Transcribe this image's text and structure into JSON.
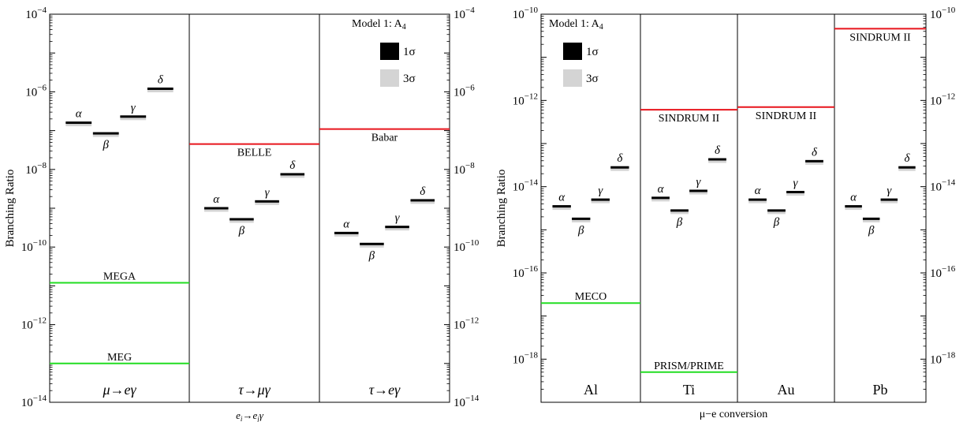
{
  "chart_data": [
    {
      "type": "scatter",
      "scale": "log",
      "ylabel": "Branching Ratio",
      "xlabel": "e_i→e_jγ",
      "ylim": [
        1e-14,
        0.0001
      ],
      "y_ticks": [
        {
          "v": 0.0001,
          "base": "10",
          "exp": "−4"
        },
        {
          "v": 1e-06,
          "base": "10",
          "exp": "−6"
        },
        {
          "v": 1e-08,
          "base": "10",
          "exp": "−8"
        },
        {
          "v": 1e-10,
          "base": "10",
          "exp": "−10"
        },
        {
          "v": 1e-12,
          "base": "10",
          "exp": "−12"
        },
        {
          "v": 1e-14,
          "base": "10",
          "exp": "−14"
        }
      ],
      "legend": {
        "title": "Model 1: A",
        "title_sub": "4",
        "items": [
          {
            "label": "1σ",
            "color": "#000000"
          },
          {
            "label": "3σ",
            "color": "#d4d4d4"
          }
        ]
      },
      "bounds_color_current": "#e8141c",
      "bounds_color_future": "#22dd22",
      "panels": [
        {
          "name": "μ→eγ",
          "points": [
            {
              "label": "α",
              "value": 1.6e-07
            },
            {
              "label": "β",
              "value": 8.5e-08
            },
            {
              "label": "γ",
              "value": 2.3e-07
            },
            {
              "label": "δ",
              "value": 1.2e-06
            }
          ],
          "bounds": [
            {
              "label": "MEGA",
              "value": 1.2e-11,
              "kind": "future"
            },
            {
              "label": "MEG",
              "value": 1e-13,
              "kind": "future"
            }
          ]
        },
        {
          "name": "τ→μγ",
          "points": [
            {
              "label": "α",
              "value": 1e-09
            },
            {
              "label": "β",
              "value": 5.2e-10
            },
            {
              "label": "γ",
              "value": 1.5e-09
            },
            {
              "label": "δ",
              "value": 7.5e-09
            }
          ],
          "bounds": [
            {
              "label": "BELLE",
              "value": 4.5e-08,
              "kind": "current"
            }
          ]
        },
        {
          "name": "τ→eγ",
          "points": [
            {
              "label": "α",
              "value": 2.3e-10
            },
            {
              "label": "β",
              "value": 1.2e-10
            },
            {
              "label": "γ",
              "value": 3.3e-10
            },
            {
              "label": "δ",
              "value": 1.6e-09
            }
          ],
          "bounds": [
            {
              "label": "Babar",
              "value": 1.1e-07,
              "kind": "current"
            }
          ]
        }
      ]
    },
    {
      "type": "scatter",
      "scale": "log",
      "ylabel": "Branching Ratio",
      "xlabel": "μ−e conversion",
      "ylim": [
        1e-19,
        1e-10
      ],
      "y_ticks": [
        {
          "v": 1e-10,
          "base": "10",
          "exp": "−10"
        },
        {
          "v": 1e-12,
          "base": "10",
          "exp": "−12"
        },
        {
          "v": 1e-14,
          "base": "10",
          "exp": "−14"
        },
        {
          "v": 1e-16,
          "base": "10",
          "exp": "−16"
        },
        {
          "v": 1e-18,
          "base": "10",
          "exp": "−18"
        }
      ],
      "legend": {
        "title": "Model 1: A",
        "title_sub": "4",
        "items": [
          {
            "label": "1σ",
            "color": "#000000"
          },
          {
            "label": "3σ",
            "color": "#d4d4d4"
          }
        ]
      },
      "bounds_color_current": "#e8141c",
      "bounds_color_future": "#22dd22",
      "panels": [
        {
          "name": "Al",
          "points": [
            {
              "label": "α",
              "value": 3.5e-15
            },
            {
              "label": "β",
              "value": 1.8e-15
            },
            {
              "label": "γ",
              "value": 5e-15
            },
            {
              "label": "δ",
              "value": 2.8e-14
            }
          ],
          "bounds": [
            {
              "label": "MECO",
              "value": 2e-17,
              "kind": "future"
            }
          ]
        },
        {
          "name": "Ti",
          "points": [
            {
              "label": "α",
              "value": 5.5e-15
            },
            {
              "label": "β",
              "value": 2.8e-15
            },
            {
              "label": "γ",
              "value": 8e-15
            },
            {
              "label": "δ",
              "value": 4.3e-14
            }
          ],
          "bounds": [
            {
              "label": "SINDRUM II",
              "value": 6.1e-13,
              "kind": "current"
            },
            {
              "label": "PRISM/PRIME",
              "value": 5e-19,
              "kind": "future"
            }
          ]
        },
        {
          "name": "Au",
          "points": [
            {
              "label": "α",
              "value": 5e-15
            },
            {
              "label": "β",
              "value": 2.8e-15
            },
            {
              "label": "γ",
              "value": 7.5e-15
            },
            {
              "label": "δ",
              "value": 3.9e-14
            }
          ],
          "bounds": [
            {
              "label": "SINDRUM II",
              "value": 7e-13,
              "kind": "current"
            }
          ]
        },
        {
          "name": "Pb",
          "points": [
            {
              "label": "α",
              "value": 3.5e-15
            },
            {
              "label": "β",
              "value": 1.8e-15
            },
            {
              "label": "γ",
              "value": 5e-15
            },
            {
              "label": "δ",
              "value": 2.8e-14
            }
          ],
          "bounds": [
            {
              "label": "SINDRUM II",
              "value": 4.6e-11,
              "kind": "current"
            }
          ]
        }
      ]
    }
  ]
}
